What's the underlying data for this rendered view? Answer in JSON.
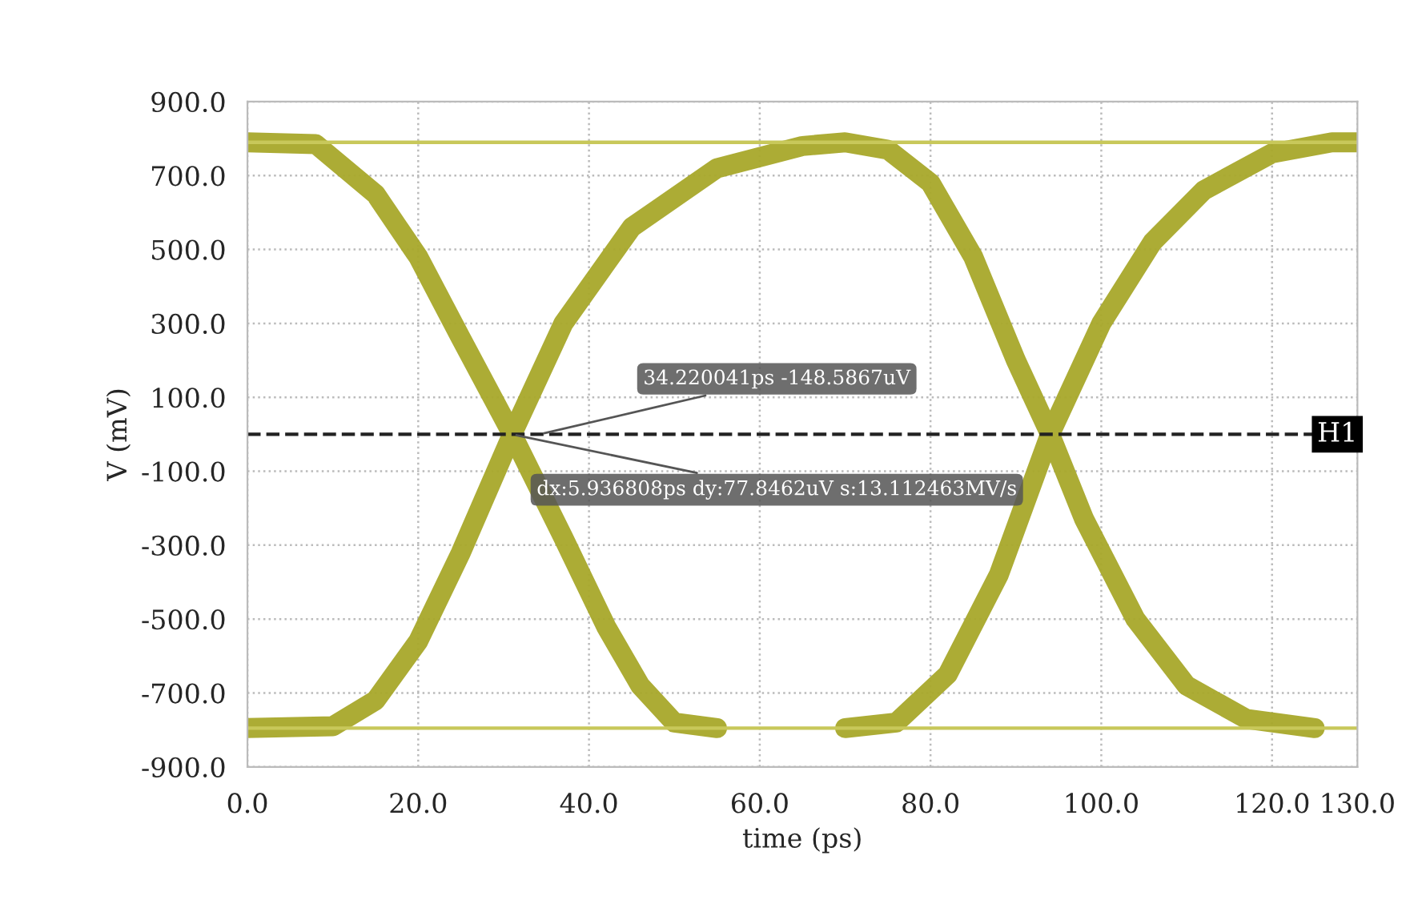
{
  "chart_data": {
    "type": "line",
    "xlabel": "time (ps)",
    "ylabel": "V (mV)",
    "xlim": [
      0,
      130
    ],
    "ylim": [
      -900,
      900
    ],
    "xticks": [
      {
        "value": 0,
        "label": "0.0"
      },
      {
        "value": 20,
        "label": "20.0"
      },
      {
        "value": 40,
        "label": "40.0"
      },
      {
        "value": 60,
        "label": "60.0"
      },
      {
        "value": 80,
        "label": "80.0"
      },
      {
        "value": 100,
        "label": "100.0"
      },
      {
        "value": 120,
        "label": "120.0"
      },
      {
        "value": 130,
        "label": "130.0"
      }
    ],
    "yticks": [
      {
        "value": 900,
        "label": "900.0"
      },
      {
        "value": 700,
        "label": "700.0"
      },
      {
        "value": 500,
        "label": "500.0"
      },
      {
        "value": 300,
        "label": "300.0"
      },
      {
        "value": 100,
        "label": "100.0"
      },
      {
        "value": -100,
        "label": "-100.0"
      },
      {
        "value": -300,
        "label": "-300.0"
      },
      {
        "value": -500,
        "label": "-500.0"
      },
      {
        "value": -700,
        "label": "-700.0"
      },
      {
        "value": -900,
        "label": "-900.0"
      }
    ],
    "grid": true,
    "legend": false,
    "series": [
      {
        "color": "#a8a82a",
        "x": [
          0,
          8,
          15,
          20,
          25,
          31,
          37,
          42,
          46,
          50,
          55,
          null,
          0,
          10,
          15,
          20,
          25,
          31,
          37,
          45,
          55,
          65,
          70,
          null,
          70,
          75,
          80,
          85,
          90,
          94,
          98,
          104,
          110,
          117,
          125,
          null,
          70,
          76,
          82,
          88,
          94,
          100,
          106,
          112,
          120,
          127,
          130
        ],
        "values": [
          790,
          785,
          650,
          480,
          260,
          0,
          -280,
          -520,
          -680,
          -780,
          -795,
          null,
          -795,
          -790,
          -720,
          -560,
          -320,
          0,
          300,
          560,
          720,
          780,
          790,
          null,
          790,
          770,
          680,
          480,
          200,
          0,
          -230,
          -500,
          -680,
          -770,
          -795,
          null,
          -795,
          -780,
          -650,
          -380,
          0,
          300,
          520,
          660,
          760,
          790,
          790
        ]
      }
    ],
    "ref_lines": [
      {
        "axis": "y",
        "value": 0,
        "label": "H1",
        "color": "#222222",
        "line_style": "dashed"
      },
      {
        "axis": "y",
        "value": 790,
        "color": "#c8c85a",
        "line_style": "solid"
      },
      {
        "axis": "y",
        "value": -795,
        "color": "#c8c85a",
        "line_style": "solid"
      }
    ],
    "annotations": [
      {
        "text": "34.220041ps -148.5867uV",
        "x": 34.22,
        "y": 0
      },
      {
        "text": "dx:5.936808ps dy:77.8462uV s:13.112463MV/s",
        "x": 31,
        "y": 0
      }
    ]
  }
}
